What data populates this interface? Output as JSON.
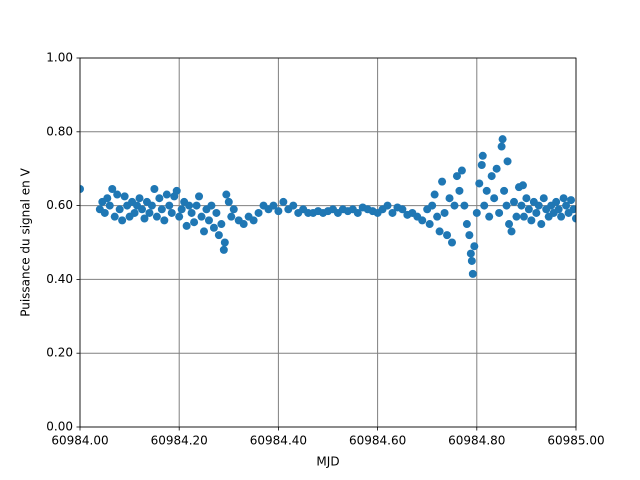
{
  "chart_data": {
    "type": "scatter",
    "x_label": "MJD",
    "y_label": "Puissance du signal en V",
    "xlim": [
      60984.0,
      60985.0
    ],
    "xticks": [
      {
        "value": 60984.0,
        "label": "60984.00"
      },
      {
        "value": 60984.2,
        "label": "60984.20"
      },
      {
        "value": 60984.4,
        "label": "60984.40"
      },
      {
        "value": 60984.6,
        "label": "60984.60"
      },
      {
        "value": 60984.8,
        "label": "60984.80"
      },
      {
        "value": 60985.0,
        "label": "60985.00"
      }
    ],
    "ylim": [
      0,
      1
    ],
    "yticks": [
      {
        "value": 0,
        "label": "0.00"
      },
      {
        "value": 0.2,
        "label": "0.20"
      },
      {
        "value": 0.4,
        "label": "0.40"
      },
      {
        "value": 0.6,
        "label": "0.60"
      },
      {
        "value": 0.8,
        "label": "0.80"
      },
      {
        "value": 1,
        "label": "1.00"
      }
    ],
    "grid": true,
    "color": "#1f77b4",
    "x": [
      60984.0,
      60984.04,
      60984.045,
      60984.05,
      60984.055,
      60984.06,
      60984.065,
      60984.07,
      60984.075,
      60984.08,
      60984.085,
      60984.09,
      60984.095,
      60984.1,
      60984.105,
      60984.11,
      60984.115,
      60984.12,
      60984.125,
      60984.13,
      60984.135,
      60984.14,
      60984.145,
      60984.15,
      60984.155,
      60984.16,
      60984.165,
      60984.17,
      60984.175,
      60984.18,
      60984.185,
      60984.19,
      60984.195,
      60984.2,
      60984.205,
      60984.21,
      60984.215,
      60984.22,
      60984.225,
      60984.23,
      60984.235,
      60984.24,
      60984.245,
      60984.25,
      60984.255,
      60984.26,
      60984.265,
      60984.27,
      60984.275,
      60984.28,
      60984.285,
      60984.29,
      60984.292,
      60984.295,
      60984.3,
      60984.305,
      60984.31,
      60984.32,
      60984.33,
      60984.34,
      60984.35,
      60984.36,
      60984.37,
      60984.38,
      60984.39,
      60984.4,
      60984.41,
      60984.42,
      60984.43,
      60984.44,
      60984.45,
      60984.46,
      60984.47,
      60984.48,
      60984.49,
      60984.5,
      60984.51,
      60984.52,
      60984.53,
      60984.54,
      60984.55,
      60984.56,
      60984.57,
      60984.58,
      60984.59,
      60984.6,
      60984.61,
      60984.62,
      60984.63,
      60984.64,
      60984.65,
      60984.66,
      60984.67,
      60984.68,
      60984.69,
      60984.7,
      60984.705,
      60984.71,
      60984.715,
      60984.72,
      60984.725,
      60984.73,
      60984.735,
      60984.74,
      60984.745,
      60984.75,
      60984.755,
      60984.76,
      60984.765,
      60984.77,
      60984.775,
      60984.78,
      60984.785,
      60984.788,
      60984.79,
      60984.792,
      60984.795,
      60984.8,
      60984.805,
      60984.81,
      60984.812,
      60984.815,
      60984.82,
      60984.825,
      60984.83,
      60984.835,
      60984.84,
      60984.845,
      60984.85,
      60984.852,
      60984.855,
      60984.86,
      60984.862,
      60984.865,
      60984.87,
      60984.875,
      60984.88,
      60984.885,
      60984.89,
      60984.893,
      60984.895,
      60984.9,
      60984.905,
      60984.91,
      60984.915,
      60984.92,
      60984.925,
      60984.93,
      60984.935,
      60984.94,
      60984.945,
      60984.95,
      60984.955,
      60984.96,
      60984.965,
      60984.97,
      60984.975,
      60984.98,
      60984.985,
      60984.99,
      60984.995,
      60985.0
    ],
    "values": [
      0.645,
      0.59,
      0.61,
      0.58,
      0.62,
      0.6,
      0.645,
      0.57,
      0.63,
      0.59,
      0.56,
      0.625,
      0.6,
      0.57,
      0.61,
      0.58,
      0.6,
      0.62,
      0.59,
      0.565,
      0.61,
      0.58,
      0.6,
      0.645,
      0.57,
      0.62,
      0.59,
      0.56,
      0.63,
      0.6,
      0.58,
      0.625,
      0.64,
      0.57,
      0.59,
      0.61,
      0.545,
      0.6,
      0.58,
      0.555,
      0.6,
      0.625,
      0.57,
      0.53,
      0.59,
      0.56,
      0.6,
      0.54,
      0.58,
      0.52,
      0.55,
      0.48,
      0.5,
      0.63,
      0.61,
      0.57,
      0.59,
      0.56,
      0.55,
      0.57,
      0.56,
      0.58,
      0.6,
      0.59,
      0.6,
      0.585,
      0.61,
      0.59,
      0.6,
      0.58,
      0.59,
      0.58,
      0.58,
      0.585,
      0.58,
      0.585,
      0.59,
      0.58,
      0.59,
      0.585,
      0.59,
      0.58,
      0.595,
      0.59,
      0.585,
      0.58,
      0.59,
      0.6,
      0.58,
      0.595,
      0.59,
      0.575,
      0.58,
      0.57,
      0.56,
      0.59,
      0.55,
      0.6,
      0.63,
      0.57,
      0.53,
      0.665,
      0.58,
      0.52,
      0.62,
      0.5,
      0.6,
      0.68,
      0.64,
      0.695,
      0.6,
      0.55,
      0.52,
      0.47,
      0.45,
      0.415,
      0.49,
      0.58,
      0.66,
      0.71,
      0.735,
      0.6,
      0.64,
      0.57,
      0.68,
      0.62,
      0.7,
      0.58,
      0.76,
      0.78,
      0.64,
      0.6,
      0.72,
      0.55,
      0.53,
      0.61,
      0.57,
      0.65,
      0.6,
      0.655,
      0.57,
      0.62,
      0.59,
      0.56,
      0.61,
      0.58,
      0.6,
      0.55,
      0.62,
      0.59,
      0.57,
      0.6,
      0.58,
      0.61,
      0.59,
      0.57,
      0.62,
      0.6,
      0.58,
      0.615,
      0.59,
      0.565
    ]
  }
}
